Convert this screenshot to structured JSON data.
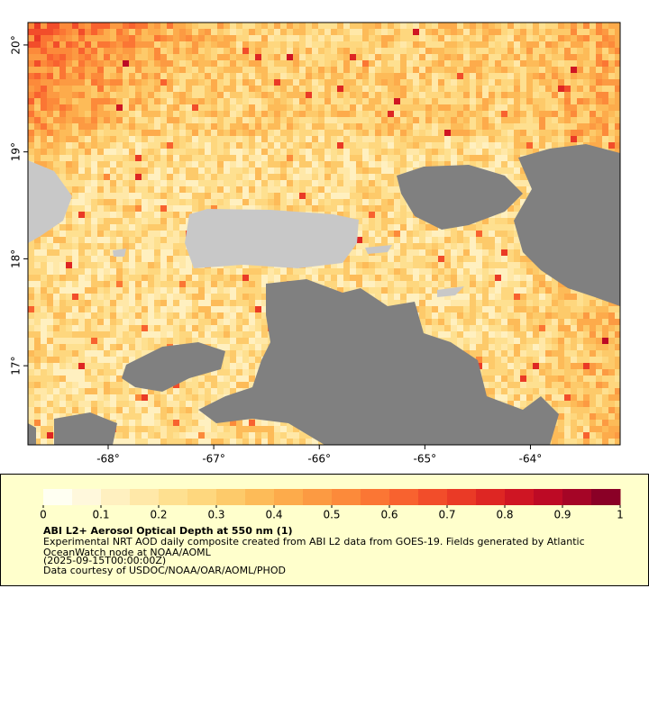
{
  "map": {
    "lonlim": [
      -68.76,
      -63.15
    ],
    "latlim": [
      16.26,
      20.21
    ],
    "lonticks": [
      {
        "value": -68,
        "label": "-68°"
      },
      {
        "value": -67,
        "label": "-67°"
      },
      {
        "value": -66,
        "label": "-66°"
      },
      {
        "value": -65,
        "label": "-65°"
      },
      {
        "value": -64,
        "label": "-64°"
      }
    ],
    "latticks": [
      {
        "value": 17,
        "label": "17°"
      },
      {
        "value": 18,
        "label": "18°"
      },
      {
        "value": 19,
        "label": "19°"
      },
      {
        "value": 20,
        "label": "20°"
      }
    ]
  },
  "colorbar": {
    "range": [
      0,
      1
    ],
    "ticks": [
      0,
      0.1,
      0.2,
      0.3,
      0.4,
      0.5,
      0.6,
      0.7,
      0.8,
      0.9,
      1
    ],
    "colors": [
      "#fffff2",
      "#fff8dc",
      "#fff0c0",
      "#ffe8a8",
      "#fee090",
      "#fed77e",
      "#fdca6a",
      "#fdbb58",
      "#fdab4b",
      "#fc9a42",
      "#fc8a3a",
      "#fb7634",
      "#f8622f",
      "#f24d2a",
      "#ea3a26",
      "#de2623",
      "#cf1523",
      "#bd0a25",
      "#a50526",
      "#8a0026"
    ]
  },
  "legend": {
    "title": "ABI L2+ Aerosol Optical Depth at 550 nm (1)",
    "description_line1": "Experimental NRT AOD daily composite created from ABI L2 data from GOES-19. Fields generated by Atlantic",
    "description_line2": "OceanWatch node at NOAA/AOML",
    "time": "(2025-09-15T00:00:00Z)",
    "credit": "Data courtesy of USDOC/NOAA/OAR/AOML/PHOD"
  }
}
